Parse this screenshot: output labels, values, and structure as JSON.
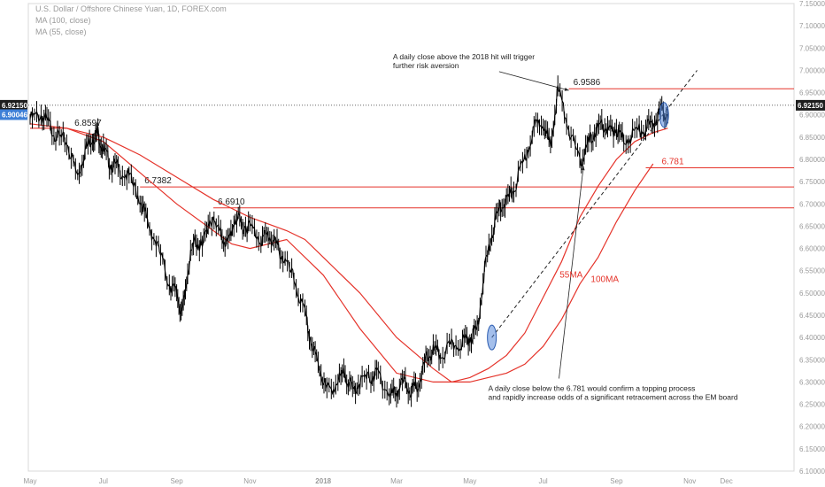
{
  "header": {
    "title": "U.S. Dollar / Offshore Chinese Yuan, 1D, FOREX.com",
    "ma_100": "MA (100, close)",
    "ma_55": "MA (55, close)"
  },
  "colors": {
    "price": "#000000",
    "ma": "#e5332a",
    "levels": "#e5332a",
    "highlight": "#4a7fd8",
    "axis_text": "#9a9a9a",
    "price_tag_bg": "#1e1e1e",
    "ma_tag_bg": "#3d7fd6"
  },
  "chart_data": {
    "type": "line",
    "ylim": [
      6.1,
      7.15
    ],
    "y_ticks": [
      "7.15000",
      "7.10000",
      "7.05000",
      "7.00000",
      "6.95000",
      "6.90000",
      "6.85000",
      "6.80000",
      "6.75000",
      "6.70000",
      "6.65000",
      "6.60000",
      "6.55000",
      "6.50000",
      "6.45000",
      "6.40000",
      "6.35000",
      "6.30000",
      "6.25000",
      "6.20000",
      "6.15000",
      "6.10000"
    ],
    "x_ticks": [
      "May",
      "Jul",
      "Sep",
      "Nov",
      "2018",
      "Mar",
      "May",
      "Jul",
      "Sep",
      "Nov",
      "Dec"
    ],
    "x_tick_months": [
      0,
      2,
      4,
      6,
      8,
      10,
      12,
      14,
      16,
      18,
      19
    ],
    "x_range": [
      0,
      21
    ],
    "price_series": {
      "name": "",
      "x": [
        0,
        0.3,
        0.5,
        0.75,
        1,
        1.3,
        1.5,
        1.7,
        1.85,
        2.0,
        2.2,
        2.4,
        2.7,
        3.0,
        3.2,
        3.5,
        3.8,
        4.0,
        4.15,
        4.3,
        4.5,
        4.7,
        4.9,
        5.2,
        5.4,
        5.6,
        5.8,
        6.0,
        6.3,
        6.5,
        6.7,
        6.9,
        7.2,
        7.5,
        7.7,
        7.9,
        8.1,
        8.4,
        8.6,
        8.8,
        9.0,
        9.3,
        9.5,
        9.8,
        10.0,
        10.2,
        10.4,
        10.6,
        10.8,
        11.0,
        11.2,
        11.5,
        11.8,
        12.0,
        12.2,
        12.4,
        12.6,
        12.8,
        13.0,
        13.2,
        13.5,
        13.75,
        14.0,
        14.2,
        14.4,
        14.7,
        15.0,
        15.2,
        15.4,
        15.6,
        15.8,
        16.0,
        16.2,
        16.5,
        16.8,
        17.0,
        17.2,
        17.4
      ],
      "values": [
        6.89,
        6.9,
        6.88,
        6.85,
        6.84,
        6.76,
        6.82,
        6.85,
        6.86,
        6.82,
        6.79,
        6.78,
        6.76,
        6.71,
        6.66,
        6.6,
        6.52,
        6.5,
        6.45,
        6.55,
        6.62,
        6.6,
        6.67,
        6.63,
        6.61,
        6.67,
        6.65,
        6.65,
        6.62,
        6.63,
        6.61,
        6.58,
        6.53,
        6.45,
        6.38,
        6.33,
        6.28,
        6.3,
        6.32,
        6.28,
        6.3,
        6.31,
        6.32,
        6.27,
        6.28,
        6.3,
        6.28,
        6.29,
        6.35,
        6.37,
        6.36,
        6.38,
        6.39,
        6.4,
        6.42,
        6.55,
        6.63,
        6.69,
        6.71,
        6.73,
        6.8,
        6.87,
        6.89,
        6.82,
        6.96,
        6.87,
        6.79,
        6.83,
        6.86,
        6.88,
        6.86,
        6.87,
        6.84,
        6.86,
        6.87,
        6.88,
        6.91,
        6.9
      ]
    },
    "ma_series": [
      {
        "name": "55MA",
        "x": [
          0,
          1,
          2,
          3,
          4,
          5,
          5.5,
          6,
          7,
          8,
          9,
          10,
          11,
          11.5,
          12,
          12.5,
          13,
          13.5,
          14,
          14.5,
          15,
          15.5,
          16,
          16.5,
          17,
          17.4
        ],
        "values": [
          6.88,
          6.87,
          6.84,
          6.77,
          6.7,
          6.64,
          6.61,
          6.6,
          6.62,
          6.54,
          6.42,
          6.32,
          6.3,
          6.3,
          6.31,
          6.33,
          6.36,
          6.41,
          6.49,
          6.57,
          6.67,
          6.74,
          6.8,
          6.84,
          6.86,
          6.87
        ]
      },
      {
        "name": "100MA",
        "x": [
          0,
          1,
          2,
          3,
          4,
          5,
          6,
          7,
          7.5,
          8,
          9,
          10,
          11,
          11.5,
          12,
          12.5,
          13,
          13.5,
          14,
          14.5,
          15,
          15.5,
          16,
          16.5,
          17
        ],
        "values": [
          6.87,
          6.87,
          6.85,
          6.81,
          6.76,
          6.71,
          6.67,
          6.64,
          6.62,
          6.58,
          6.5,
          6.4,
          6.33,
          6.3,
          6.3,
          6.31,
          6.32,
          6.34,
          6.38,
          6.44,
          6.52,
          6.58,
          6.66,
          6.73,
          6.79
        ]
      }
    ],
    "horizontal_levels": [
      {
        "value": 6.9586,
        "x_start": 14.7,
        "label": "6.9586",
        "label_position": "above"
      },
      {
        "value": 6.7382,
        "x_start": 3.0,
        "label": "6.7382",
        "label_position": "above"
      },
      {
        "value": 6.691,
        "x_start": 5.0,
        "label": "6.6910",
        "label_position": "above"
      },
      {
        "value": 6.781,
        "x_start": 16.8,
        "label": "6.781",
        "label_position": "above-right"
      }
    ],
    "point_labels": [
      {
        "label": "6.8597",
        "x": 1.5,
        "value": 6.8597
      }
    ],
    "current_price": {
      "value": 6.9215,
      "label": "6.92150"
    },
    "current_ma": {
      "value": 6.90046,
      "label": "6.90046"
    },
    "trendline": {
      "x": [
        12.6,
        18.2
      ],
      "values": [
        6.4,
        7.0
      ],
      "style": "dashed"
    },
    "highlight_ellipses": [
      {
        "x": 12.6,
        "value": 6.4
      },
      {
        "x": 17.3,
        "value": 6.9
      }
    ],
    "annotations": [
      {
        "text": [
          "A daily close above the 2018 hit will trigger",
          "further risk aversion"
        ],
        "anchor": {
          "x": 9.9,
          "value": 7.025
        },
        "arrow_to": {
          "x": 14.7,
          "value": 6.955
        }
      },
      {
        "text": [
          "A daily close below the 6.781 would confirm a topping process",
          "and rapidly increase odds of a significant retracement across the EM board"
        ],
        "anchor": {
          "x": 12.5,
          "value": 6.28
        },
        "arrow_to": {
          "x": 15.1,
          "value": 6.785
        }
      }
    ],
    "ma_labels": [
      {
        "text": "55MA",
        "x": 14.45,
        "value": 6.535
      },
      {
        "text": "100MA",
        "x": 15.3,
        "value": 6.525
      }
    ]
  }
}
